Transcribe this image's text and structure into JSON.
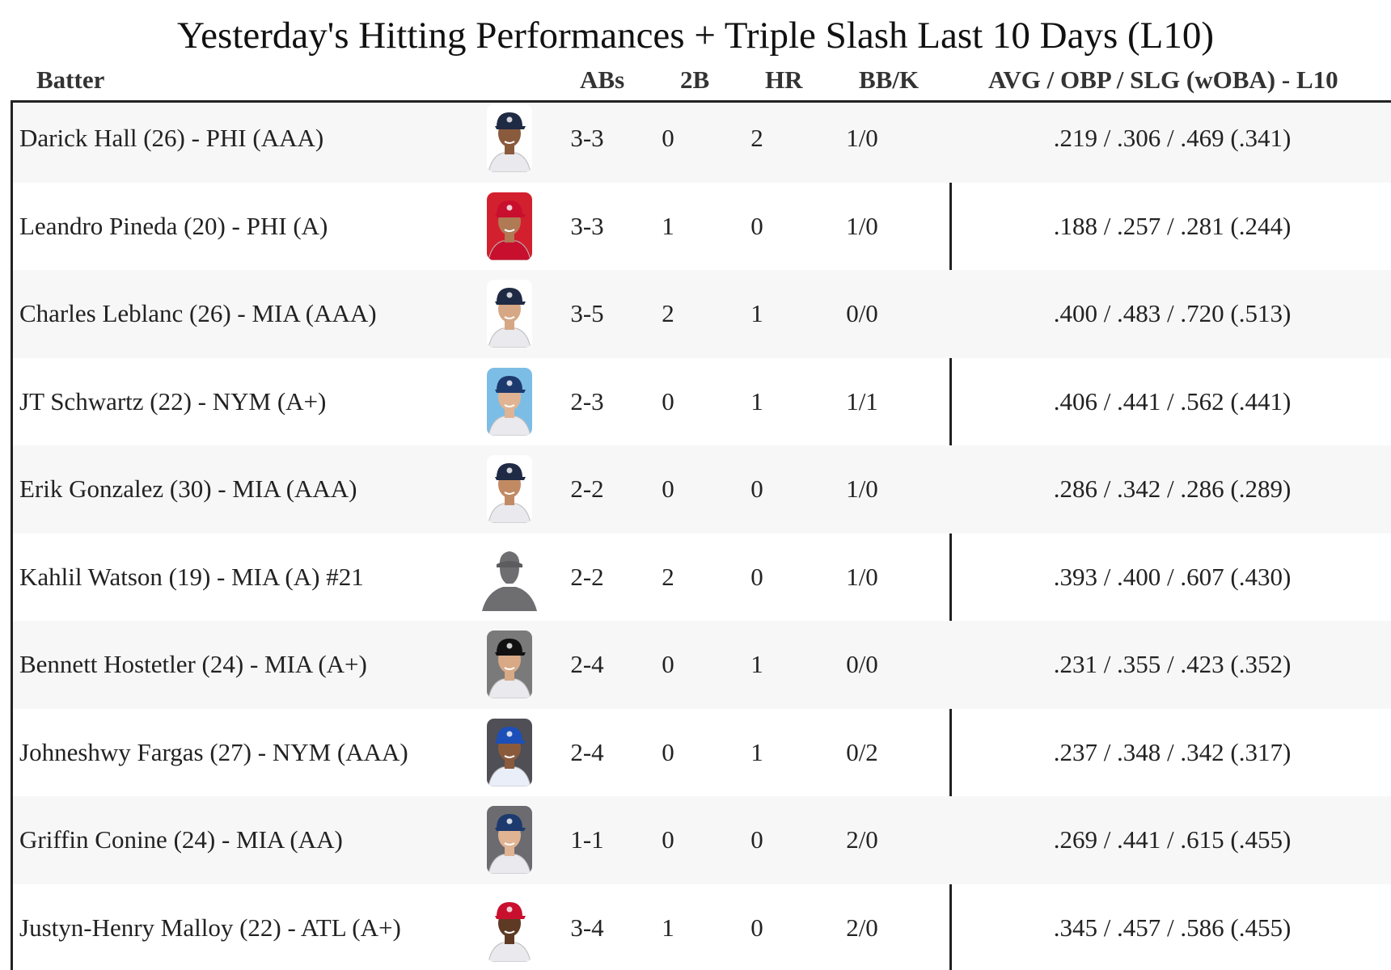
{
  "title": "Yesterday's Hitting Performances + Triple Slash Last 10 Days (L10)",
  "columns": {
    "batter": "Batter",
    "abs": "ABs",
    "doubles": "2B",
    "hr": "HR",
    "bbk": "BB/K",
    "slash": "AVG / OBP / SLG (wOBA) - L10"
  },
  "rows": [
    {
      "name": "Darick Hall (26) - PHI (AAA)",
      "abs": "3-3",
      "doubles": "0",
      "hr": "2",
      "bbk": "1/0",
      "slash": ".219 / .306 / .469 (.341)",
      "photo": "player-headshot",
      "cap_color": "#1f2a44",
      "bg_color": "#ffffff",
      "jersey_color": "#e9e9ee",
      "skin": "#8a5a3c"
    },
    {
      "name": "Leandro Pineda (20) - PHI (A)",
      "abs": "3-3",
      "doubles": "1",
      "hr": "0",
      "bbk": "1/0",
      "slash": ".188 / .257 / .281 (.244)",
      "photo": "player-headshot",
      "cap_color": "#c8102e",
      "bg_color": "#d3202e",
      "jersey_color": "#c8102e",
      "skin": "#b07a55"
    },
    {
      "name": "Charles Leblanc (26) - MIA (AAA)",
      "abs": "3-5",
      "doubles": "2",
      "hr": "1",
      "bbk": "0/0",
      "slash": ".400 / .483 / .720 (.513)",
      "photo": "player-headshot",
      "cap_color": "#1f2a44",
      "bg_color": "#ffffff",
      "jersey_color": "#e9e9ee",
      "skin": "#d6a784"
    },
    {
      "name": "JT Schwartz (22) - NYM (A+)",
      "abs": "2-3",
      "doubles": "0",
      "hr": "1",
      "bbk": "1/1",
      "slash": ".406 / .441 / .562 (.441)",
      "photo": "player-headshot",
      "cap_color": "#1d3a6e",
      "bg_color": "#7cbde6",
      "jersey_color": "#e9e9ee",
      "skin": "#e0b393"
    },
    {
      "name": "Erik Gonzalez (30) - MIA (AAA)",
      "abs": "2-2",
      "doubles": "0",
      "hr": "0",
      "bbk": "1/0",
      "slash": ".286 / .342 / .286 (.289)",
      "photo": "player-headshot",
      "cap_color": "#1f2a44",
      "bg_color": "#ffffff",
      "jersey_color": "#e9e9ee",
      "skin": "#c28a63"
    },
    {
      "name": "Kahlil Watson (19) - MIA (A) #21",
      "abs": "2-2",
      "doubles": "2",
      "hr": "0",
      "bbk": "1/0",
      "slash": ".393 / .400 / .607 (.430)",
      "photo": "silhouette"
    },
    {
      "name": "Bennett Hostetler (24) - MIA (A+)",
      "abs": "2-4",
      "doubles": "0",
      "hr": "1",
      "bbk": "0/0",
      "slash": ".231 / .355 / .423 (.352)",
      "photo": "player-headshot",
      "cap_color": "#111111",
      "bg_color": "#7a7a7a",
      "jersey_color": "#e9e9ee",
      "skin": "#d8a986"
    },
    {
      "name": "Johneshwy Fargas (27) - NYM (AAA)",
      "abs": "2-4",
      "doubles": "0",
      "hr": "1",
      "bbk": "0/2",
      "slash": ".237 / .348 / .342 (.317)",
      "photo": "player-headshot",
      "cap_color": "#1d4fb8",
      "bg_color": "#4f4f55",
      "jersey_color": "#e9eef8",
      "skin": "#8a5a3c"
    },
    {
      "name": "Griffin Conine (24) - MIA (AA)",
      "abs": "1-1",
      "doubles": "0",
      "hr": "0",
      "bbk": "2/0",
      "slash": ".269 / .441 / .615 (.455)",
      "photo": "player-headshot",
      "cap_color": "#1d3a6e",
      "bg_color": "#6b6b70",
      "jersey_color": "#e9e9ee",
      "skin": "#e0b393"
    },
    {
      "name": "Justyn-Henry Malloy (22) - ATL (A+)",
      "abs": "3-4",
      "doubles": "1",
      "hr": "0",
      "bbk": "2/0",
      "slash": ".345 / .457 / .586 (.455)",
      "photo": "player-headshot",
      "cap_color": "#c8102e",
      "bg_color": "#ffffff",
      "jersey_color": "#e9e9ee",
      "skin": "#5e3a24"
    }
  ]
}
